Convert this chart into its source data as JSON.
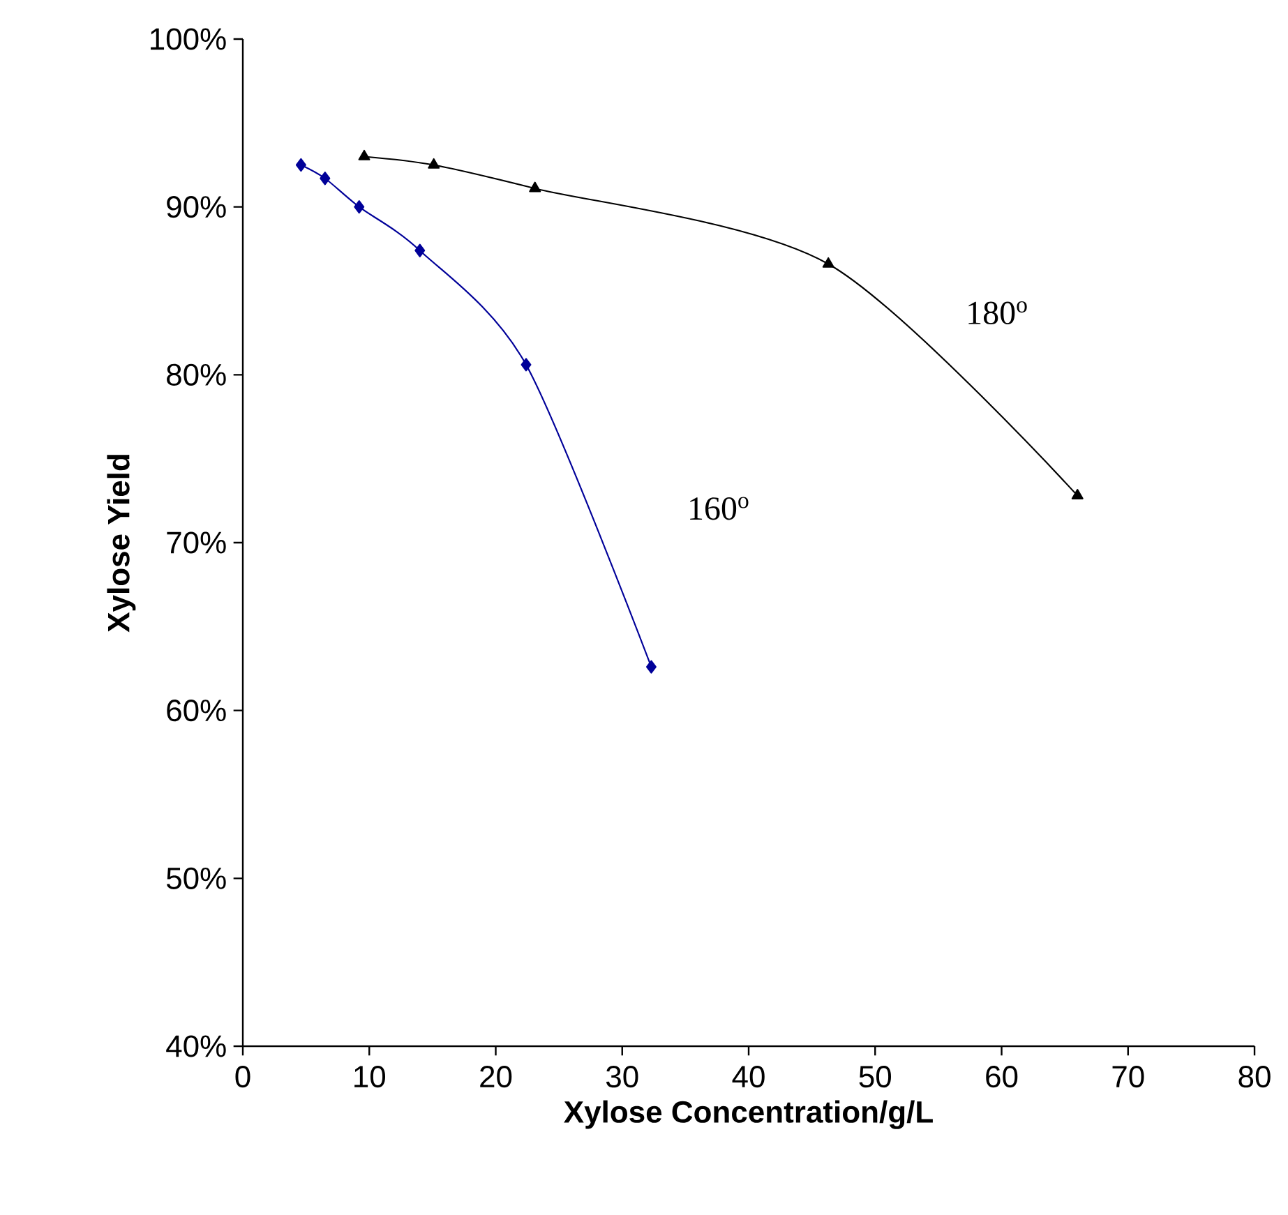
{
  "chart_data": {
    "type": "line",
    "xlabel": "Xylose Concentration/g/L",
    "ylabel": "Xylose Yield",
    "xlim": [
      0,
      80
    ],
    "xticks": [
      0,
      10,
      20,
      30,
      40,
      50,
      60,
      70,
      80
    ],
    "ylim": [
      40,
      100
    ],
    "yticks": [
      {
        "value": 40,
        "label": "40%"
      },
      {
        "value": 50,
        "label": "50%"
      },
      {
        "value": 60,
        "label": "60%"
      },
      {
        "value": 70,
        "label": "70%"
      },
      {
        "value": 80,
        "label": "80%"
      },
      {
        "value": 90,
        "label": "90%"
      },
      {
        "value": 100,
        "label": "100%"
      }
    ],
    "grid": false,
    "legend": false,
    "series": [
      {
        "name": "160$^{o}$",
        "color": "#000099",
        "marker": "diamond",
        "x": [
          4.6,
          6.5,
          9.2,
          14.0,
          22.4,
          32.3
        ],
        "values": [
          92.5,
          91.7,
          90.0,
          87.4,
          80.6,
          62.6
        ]
      },
      {
        "name": "180$^{o}$",
        "color": "#000000",
        "marker": "triangle",
        "x": [
          9.6,
          15.1,
          23.1,
          46.3,
          66.0
        ],
        "values": [
          93.0,
          92.5,
          91.1,
          86.6,
          72.8
        ]
      }
    ]
  }
}
